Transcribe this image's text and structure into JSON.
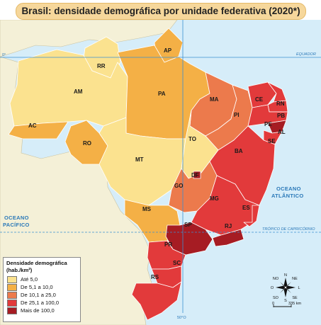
{
  "title": "Brasil: densidade demográfica por unidade federativa (2020*)",
  "colors": {
    "ocean": "#d6edf9",
    "neighbor": "#f4f0d7",
    "c1": "#fbe28f",
    "c2": "#f4b046",
    "c3": "#ec7a4c",
    "c4": "#e23a3b",
    "c5": "#a61c23",
    "line": "#3b8fd1"
  },
  "states": {
    "RR": "RR",
    "AP": "AP",
    "AM": "AM",
    "PA": "PA",
    "MA": "MA",
    "CE": "CE",
    "RN": "RN",
    "PB": "PB",
    "PE": "PE",
    "AL": "AL",
    "SE": "SE",
    "PI": "PI",
    "AC": "AC",
    "RO": "RO",
    "TO": "TO",
    "BA": "BA",
    "MT": "MT",
    "DF": "DF",
    "GO": "GO",
    "MG": "MG",
    "ES": "ES",
    "MS": "MS",
    "SP": "SP",
    "RJ": "RJ",
    "PR": "PR",
    "SC": "SC",
    "RS": "RS"
  },
  "density_class": {
    "RR": 1,
    "AP": 2,
    "AM": 1,
    "PA": 2,
    "MA": 3,
    "CE": 4,
    "RN": 4,
    "PB": 4,
    "PE": 4,
    "AL": 5,
    "SE": 4,
    "PI": 3,
    "AC": 2,
    "RO": 2,
    "TO": 1,
    "BA": 4,
    "MT": 1,
    "DF": 5,
    "GO": 3,
    "MG": 4,
    "ES": 4,
    "MS": 2,
    "SP": 5,
    "RJ": 5,
    "PR": 4,
    "SC": 4,
    "RS": 4
  },
  "oceans": {
    "atlantic_line1": "OCEANO",
    "atlantic_line2": "ATLÂNTICO",
    "pacific_line1": "OCEANO",
    "pacific_line2": "PACÍFICO"
  },
  "reference_lines": {
    "equator": "EQUADOR",
    "tropic": "TRÓPICO DE CAPRICÓRNIO",
    "meridian_0": "0°",
    "meridian_50": "50°O"
  },
  "legend": {
    "title": "Densidade demográfica",
    "unit": "(hab./km²)",
    "items": [
      {
        "label": "Até 5,0",
        "color_key": "c1"
      },
      {
        "label": "De 5,1 a 10,0",
        "color_key": "c2"
      },
      {
        "label": "De 10,1 a 25,0",
        "color_key": "c3"
      },
      {
        "label": "De 25,1 a 100,0",
        "color_key": "c4"
      },
      {
        "label": "Mais de 100,0",
        "color_key": "c5"
      }
    ]
  },
  "compass": {
    "N": "N",
    "NE": "NE",
    "L": "L",
    "SE": "SE",
    "S": "S",
    "SO": "SO",
    "O": "O",
    "NO": "NO"
  },
  "scale": {
    "zero": "0",
    "value": "335 km"
  }
}
